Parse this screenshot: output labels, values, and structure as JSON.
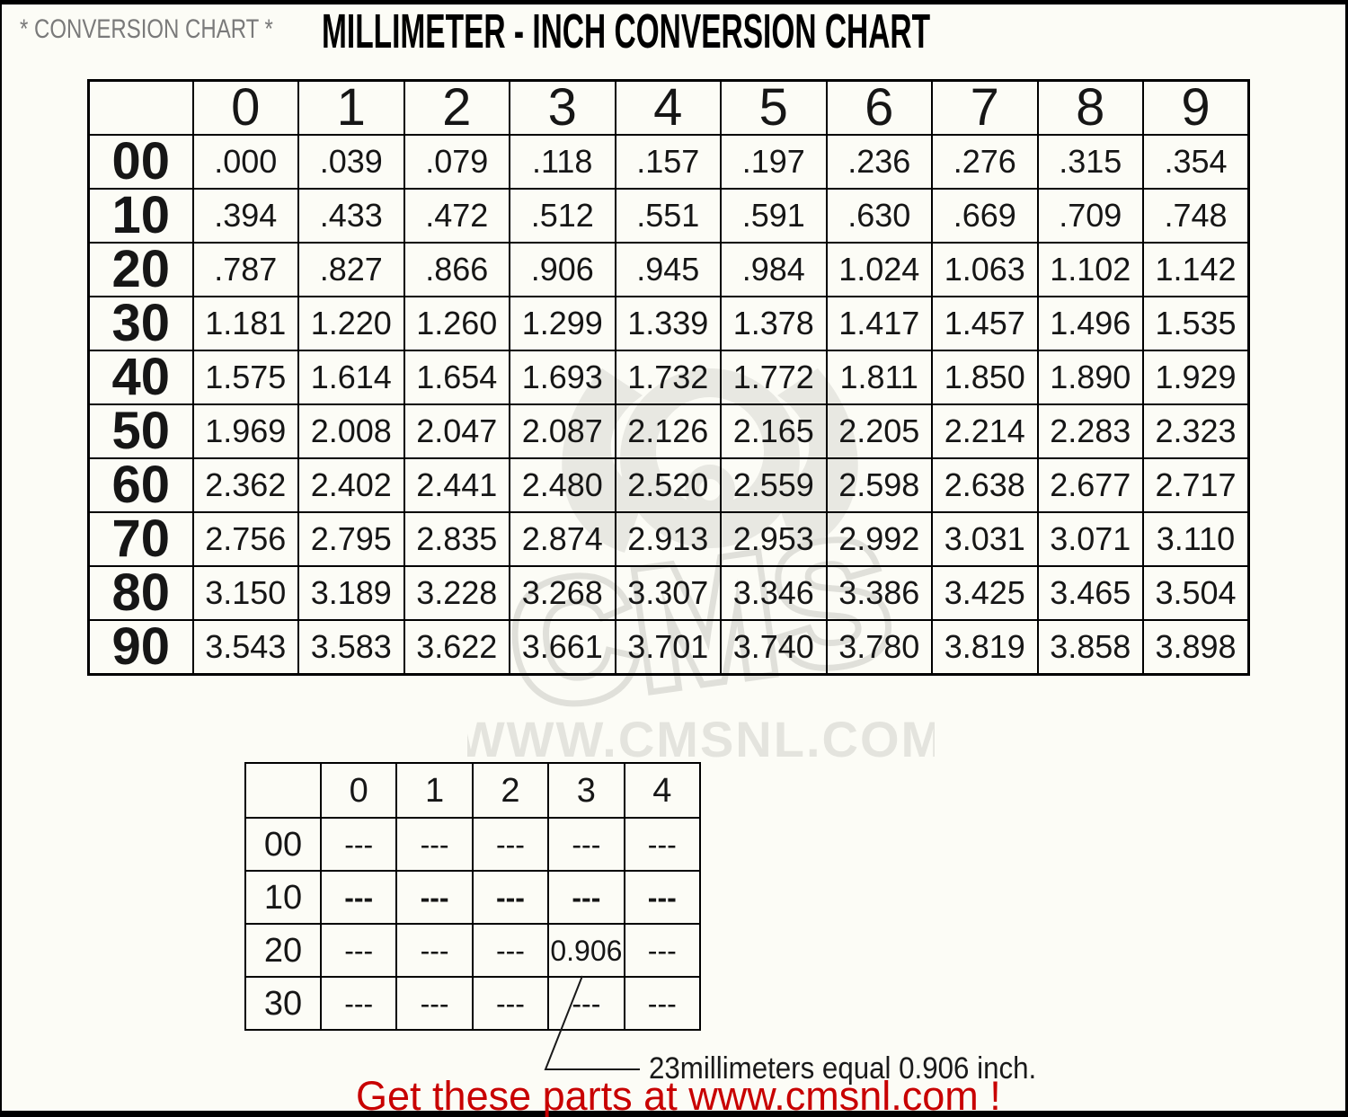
{
  "page": {
    "header": {
      "left_title": "* CONVERSION CHART *",
      "main_title": "MILLIMETER - INCH CONVERSION CHART"
    },
    "watermark": {
      "logo_text": "CMS",
      "url_text": "WWW.CMSNL.COM"
    },
    "annotation_text": "23millimeters equal 0.906 inch.",
    "footer_text": "Get these parts at www.cmsnl.com !",
    "colors": {
      "footer_red": "#c80000",
      "subtitle_gray": "#7a7a7a",
      "watermark_gray": "#e8e8e2",
      "border_black": "#000000"
    }
  },
  "chart_data": {
    "type": "table",
    "title": "MILLIMETER - INCH CONVERSION CHART",
    "main_table": {
      "corner_label": "",
      "col_headers": [
        "0",
        "1",
        "2",
        "3",
        "4",
        "5",
        "6",
        "7",
        "8",
        "9"
      ],
      "row_headers": [
        "00",
        "10",
        "20",
        "30",
        "40",
        "50",
        "60",
        "70",
        "80",
        "90"
      ],
      "rows": [
        [
          ".000",
          ".039",
          ".079",
          ".118",
          ".157",
          ".197",
          ".236",
          ".276",
          ".315",
          ".354"
        ],
        [
          ".394",
          ".433",
          ".472",
          ".512",
          ".551",
          ".591",
          ".630",
          ".669",
          ".709",
          ".748"
        ],
        [
          ".787",
          ".827",
          ".866",
          ".906",
          ".945",
          ".984",
          "1.024",
          "1.063",
          "1.102",
          "1.142"
        ],
        [
          "1.181",
          "1.220",
          "1.260",
          "1.299",
          "1.339",
          "1.378",
          "1.417",
          "1.457",
          "1.496",
          "1.535"
        ],
        [
          "1.575",
          "1.614",
          "1.654",
          "1.693",
          "1.732",
          "1.772",
          "1.811",
          "1.850",
          "1.890",
          "1.929"
        ],
        [
          "1.969",
          "2.008",
          "2.047",
          "2.087",
          "2.126",
          "2.165",
          "2.205",
          "2.214",
          "2.283",
          "2.323"
        ],
        [
          "2.362",
          "2.402",
          "2.441",
          "2.480",
          "2.520",
          "2.559",
          "2.598",
          "2.638",
          "2.677",
          "2.717"
        ],
        [
          "2.756",
          "2.795",
          "2.835",
          "2.874",
          "2.913",
          "2.953",
          "2.992",
          "3.031",
          "3.071",
          "3.110"
        ],
        [
          "3.150",
          "3.189",
          "3.228",
          "3.268",
          "3.307",
          "3.346",
          "3.386",
          "3.425",
          "3.465",
          "3.504"
        ],
        [
          "3.543",
          "3.583",
          "3.622",
          "3.661",
          "3.701",
          "3.740",
          "3.780",
          "3.819",
          "3.858",
          "3.898"
        ]
      ]
    },
    "example_table": {
      "corner_label": "",
      "col_headers": [
        "0",
        "1",
        "2",
        "3",
        "4"
      ],
      "row_headers": [
        "00",
        "10",
        "20",
        "30"
      ],
      "rows": [
        [
          "---",
          "---",
          "---",
          "---",
          "---"
        ],
        [
          "---",
          "---",
          "---",
          "---",
          "---"
        ],
        [
          "---",
          "---",
          "---",
          "0.906",
          "---"
        ],
        [
          "---",
          "---",
          "---",
          "---",
          "---"
        ]
      ],
      "bold_row": 1,
      "highlight_cell": {
        "row": 2,
        "col": 3,
        "value": "0.906"
      }
    }
  }
}
